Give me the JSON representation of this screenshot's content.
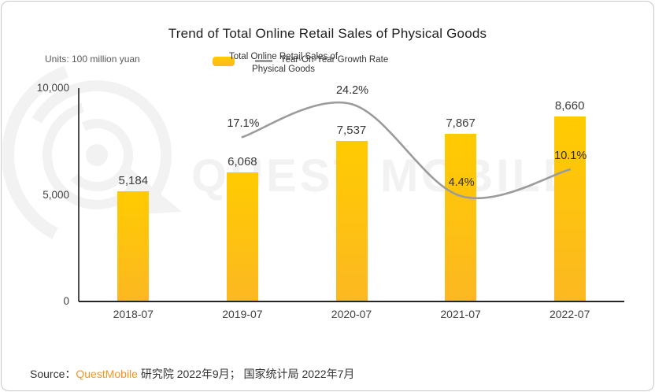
{
  "title": "Trend of Total Online Retail Sales of Physical Goods",
  "units_label": "Units: 100 million yuan",
  "legend": {
    "bar_label_line1": "Total Online Retail Sales of",
    "bar_label_line2": "Physical Goods",
    "line_label": "Year-On-Year Growth Rate"
  },
  "watermark": {
    "text": "QUEST MOBILE"
  },
  "source": {
    "prefix": "Source：",
    "brand": "QuestMobile",
    "suffix": " 研究院 2022年9月； 国家统计局 2022年7月"
  },
  "colors": {
    "bar_gradient_top": "#ffcb00",
    "bar_gradient_bottom": "#fcb822",
    "growth_line": "#9b9b9b",
    "brand_orange": "#f7941d",
    "axis_text": "#404040",
    "watermark": "#f2f2f2"
  },
  "chart_data": {
    "type": "bar",
    "title": "Trend of Total Online Retail Sales of Physical Goods",
    "units": "100 million yuan",
    "categories": [
      "2018-07",
      "2019-07",
      "2020-07",
      "2021-07",
      "2022-07"
    ],
    "series": [
      {
        "name": "Total Online Retail Sales of Physical Goods",
        "type": "bar",
        "values": [
          5184,
          6068,
          7537,
          7867,
          8660
        ],
        "labels": [
          "5,184",
          "6,068",
          "7,537",
          "7,867",
          "8,660"
        ]
      },
      {
        "name": "Year-On-Year Growth Rate",
        "type": "line",
        "values": [
          null,
          17.1,
          24.2,
          4.4,
          10.1
        ],
        "labels": [
          "",
          "17.1%",
          "24.2%",
          "4.4%",
          "10.1%"
        ]
      }
    ],
    "ylim": [
      0,
      10000
    ],
    "yticks": [
      {
        "value": 0,
        "label": "0"
      },
      {
        "value": 5000,
        "label": "5,000"
      },
      {
        "value": 10000,
        "label": "10,000"
      }
    ],
    "grid": false,
    "legend_position": "top"
  }
}
